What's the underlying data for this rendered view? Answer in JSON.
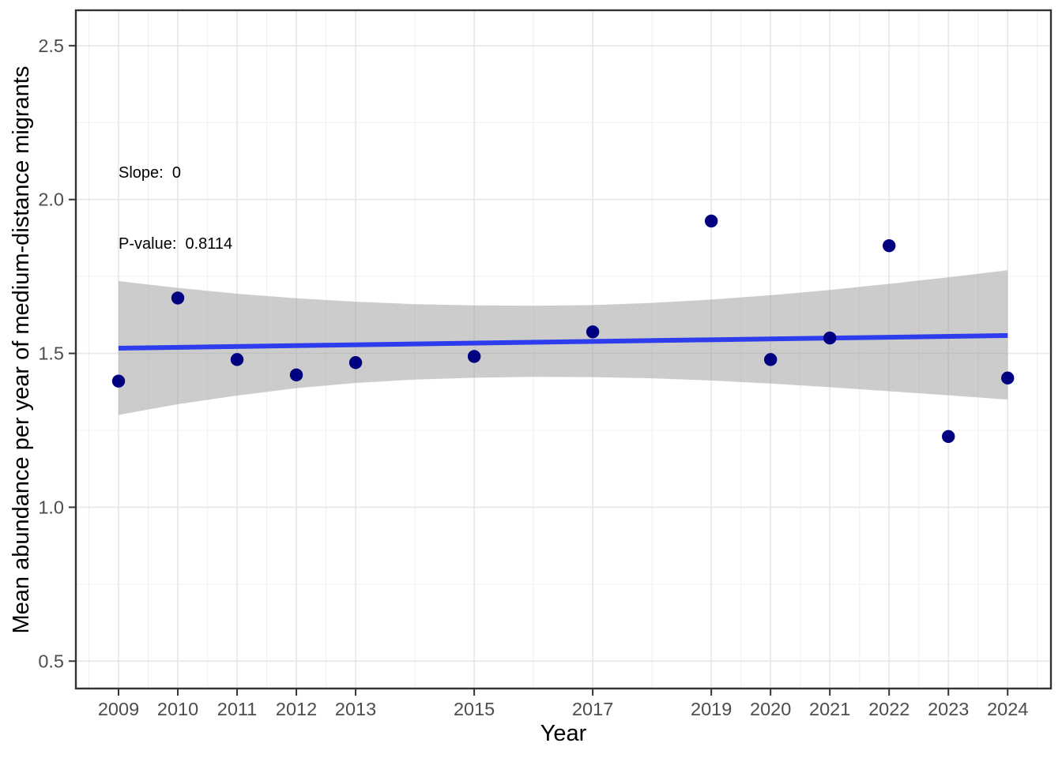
{
  "chart_data": {
    "type": "scatter",
    "title": "",
    "xlabel": "Year",
    "ylabel": "Mean abundance per year of medium-distance migrants",
    "annotation": {
      "line1": "Slope:  0",
      "line2": "P-value:  0.8114",
      "slope": 0,
      "p_value": 0.8114
    },
    "legend": "none",
    "grid": true,
    "x_domain": [
      2008.28,
      2024.73
    ],
    "y_domain": [
      0.411,
      2.615
    ],
    "x_ticks": [
      2009,
      2010,
      2011,
      2012,
      2013,
      2015,
      2017,
      2019,
      2020,
      2021,
      2022,
      2023,
      2024
    ],
    "x_tick_labels": [
      "2009",
      "2010",
      "2011",
      "2012",
      "2013",
      "2015",
      "2017",
      "2019",
      "2020",
      "2021",
      "2022",
      "2023",
      "2024"
    ],
    "x_minor": [
      2008.5,
      2009.5,
      2010.5,
      2011.5,
      2012.5,
      2014,
      2016,
      2018,
      2019.5,
      2020.5,
      2021.5,
      2022.5,
      2023.5,
      2024.5
    ],
    "y_ticks": [
      0.5,
      1.0,
      1.5,
      2.0,
      2.5
    ],
    "y_tick_labels": [
      "0.5",
      "1.0",
      "1.5",
      "2.0",
      "2.5"
    ],
    "y_minor": [
      0.75,
      1.25,
      1.75,
      2.25
    ],
    "points": [
      {
        "x": 2009,
        "y": 1.41
      },
      {
        "x": 2010,
        "y": 1.68
      },
      {
        "x": 2011,
        "y": 1.48
      },
      {
        "x": 2012,
        "y": 1.43
      },
      {
        "x": 2013,
        "y": 1.47
      },
      {
        "x": 2015,
        "y": 1.49
      },
      {
        "x": 2017,
        "y": 1.57
      },
      {
        "x": 2019,
        "y": 1.93
      },
      {
        "x": 2020,
        "y": 1.48
      },
      {
        "x": 2021,
        "y": 1.55
      },
      {
        "x": 2022,
        "y": 1.85
      },
      {
        "x": 2023,
        "y": 1.23
      },
      {
        "x": 2024,
        "y": 1.42
      }
    ],
    "trend": {
      "type": "linear",
      "x": [
        2009,
        2024
      ],
      "y": [
        1.517,
        1.558
      ]
    },
    "ci_band": [
      {
        "x": 2009,
        "lo": 1.3,
        "hi": 1.735
      },
      {
        "x": 2010,
        "lo": 1.335,
        "hi": 1.713
      },
      {
        "x": 2011,
        "lo": 1.363,
        "hi": 1.694
      },
      {
        "x": 2012,
        "lo": 1.387,
        "hi": 1.679
      },
      {
        "x": 2013,
        "lo": 1.404,
        "hi": 1.668
      },
      {
        "x": 2014,
        "lo": 1.415,
        "hi": 1.66
      },
      {
        "x": 2015,
        "lo": 1.421,
        "hi": 1.656
      },
      {
        "x": 2016,
        "lo": 1.424,
        "hi": 1.655
      },
      {
        "x": 2017,
        "lo": 1.423,
        "hi": 1.657
      },
      {
        "x": 2018,
        "lo": 1.419,
        "hi": 1.664
      },
      {
        "x": 2019,
        "lo": 1.412,
        "hi": 1.675
      },
      {
        "x": 2020,
        "lo": 1.402,
        "hi": 1.689
      },
      {
        "x": 2021,
        "lo": 1.39,
        "hi": 1.706
      },
      {
        "x": 2022,
        "lo": 1.377,
        "hi": 1.726
      },
      {
        "x": 2023,
        "lo": 1.364,
        "hi": 1.747
      },
      {
        "x": 2024,
        "lo": 1.35,
        "hi": 1.77
      }
    ],
    "colors": {
      "point": "#000080",
      "trend_line": "#2D3CEC",
      "band": "rgba(153,153,153,0.5)",
      "grid_major": "#e7e7e7",
      "grid_minor": "#f0f0f0",
      "panel_border": "#333333",
      "tick_mark": "#333333",
      "tick_label": "#4d4d4d",
      "axis_title": "#000000",
      "annotation_text": "#000000",
      "background": "#ffffff"
    }
  }
}
